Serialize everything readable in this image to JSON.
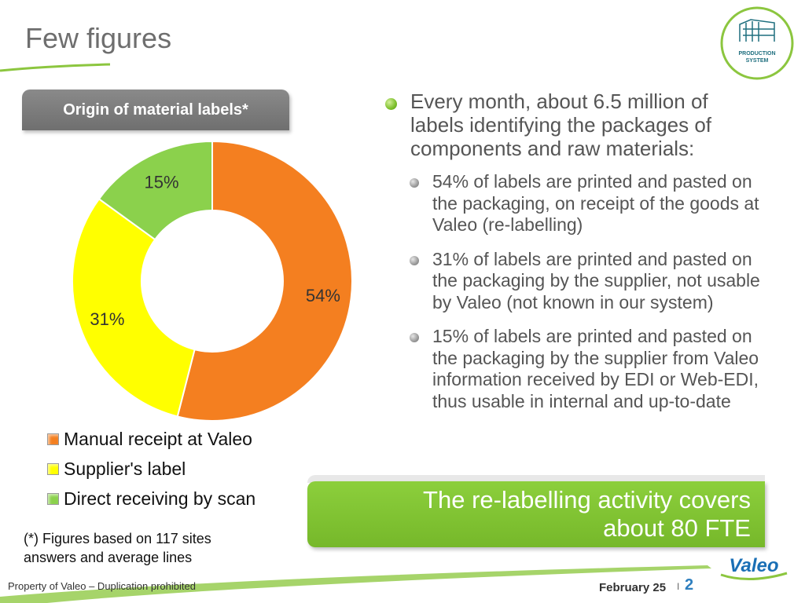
{
  "slide": {
    "title": "Few figures",
    "chart_header": "Origin of material labels*",
    "footnote": "(*) Figures based on 117 sites answers and average lines",
    "logo_text_line1": "PRODUCTION",
    "logo_text_line2": "SYSTEM",
    "brand_logo": "Valeo",
    "footer_left": "Property of Valeo – Duplication prohibited",
    "footer_date": "February 25",
    "footer_sep": "I",
    "page_number": "2"
  },
  "bullets": {
    "main": "Every month, about 6.5 million of labels identifying the packages of components and raw materials:",
    "items": [
      "54% of labels are printed and pasted on the packaging, on receipt of the goods at Valeo (re-labelling)",
      "31% of labels are printed and pasted on the packaging by the supplier, not usable by Valeo (not known in our system)",
      "15% of labels are printed and pasted on the packaging by the supplier from Valeo information received by EDI or Web-EDI, thus usable in internal and up-to-date"
    ]
  },
  "callout": {
    "line1": "The re-labelling activity covers",
    "line2": "about 80 FTE"
  },
  "colors": {
    "orange": "#f47f20",
    "yellow": "#ffff00",
    "green": "#8bd14c",
    "accent_green": "#7dbb2f",
    "title_gray": "#6e6e6e"
  },
  "chart_data": {
    "type": "pie",
    "style": "donut",
    "title": "Origin of material labels*",
    "categories": [
      "Manual receipt at Valeo",
      "Supplier's label",
      "Direct receiving by scan"
    ],
    "values": [
      54,
      31,
      15
    ],
    "labels": [
      "54%",
      "31%",
      "15%"
    ],
    "colors": [
      "#f47f20",
      "#ffff00",
      "#8bd14c"
    ],
    "legend_position": "bottom"
  }
}
